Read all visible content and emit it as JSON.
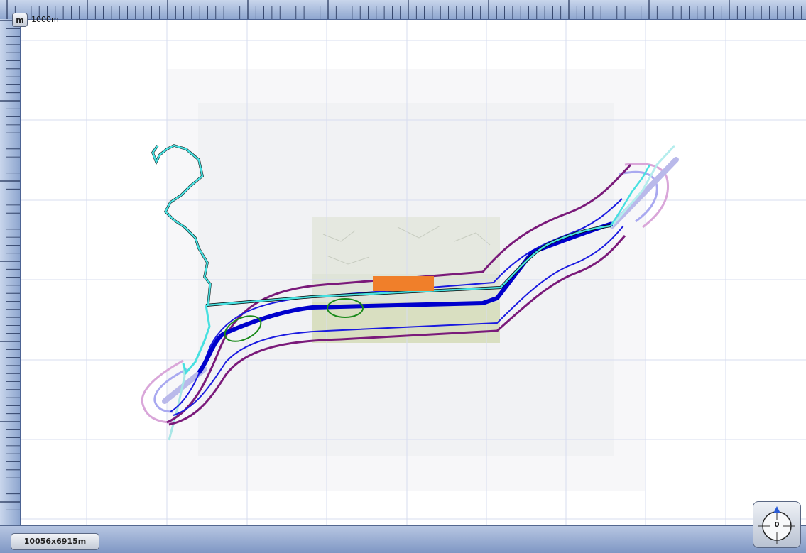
{
  "toolbar": {
    "unit_label": "m",
    "scale_label": "1000m"
  },
  "status": {
    "size_label": "10056x6915m"
  },
  "compass": {
    "heading": "0"
  },
  "colors": {
    "grid": "#d7dcef",
    "buffer_outer": "#7a1a7a",
    "buffer_inner": "#1a1ae0",
    "route_main": "#0000cc",
    "route_alt": "#47e0e0",
    "highlight_ellipse": "#1a8a1a",
    "marker": "#f07f2a"
  }
}
